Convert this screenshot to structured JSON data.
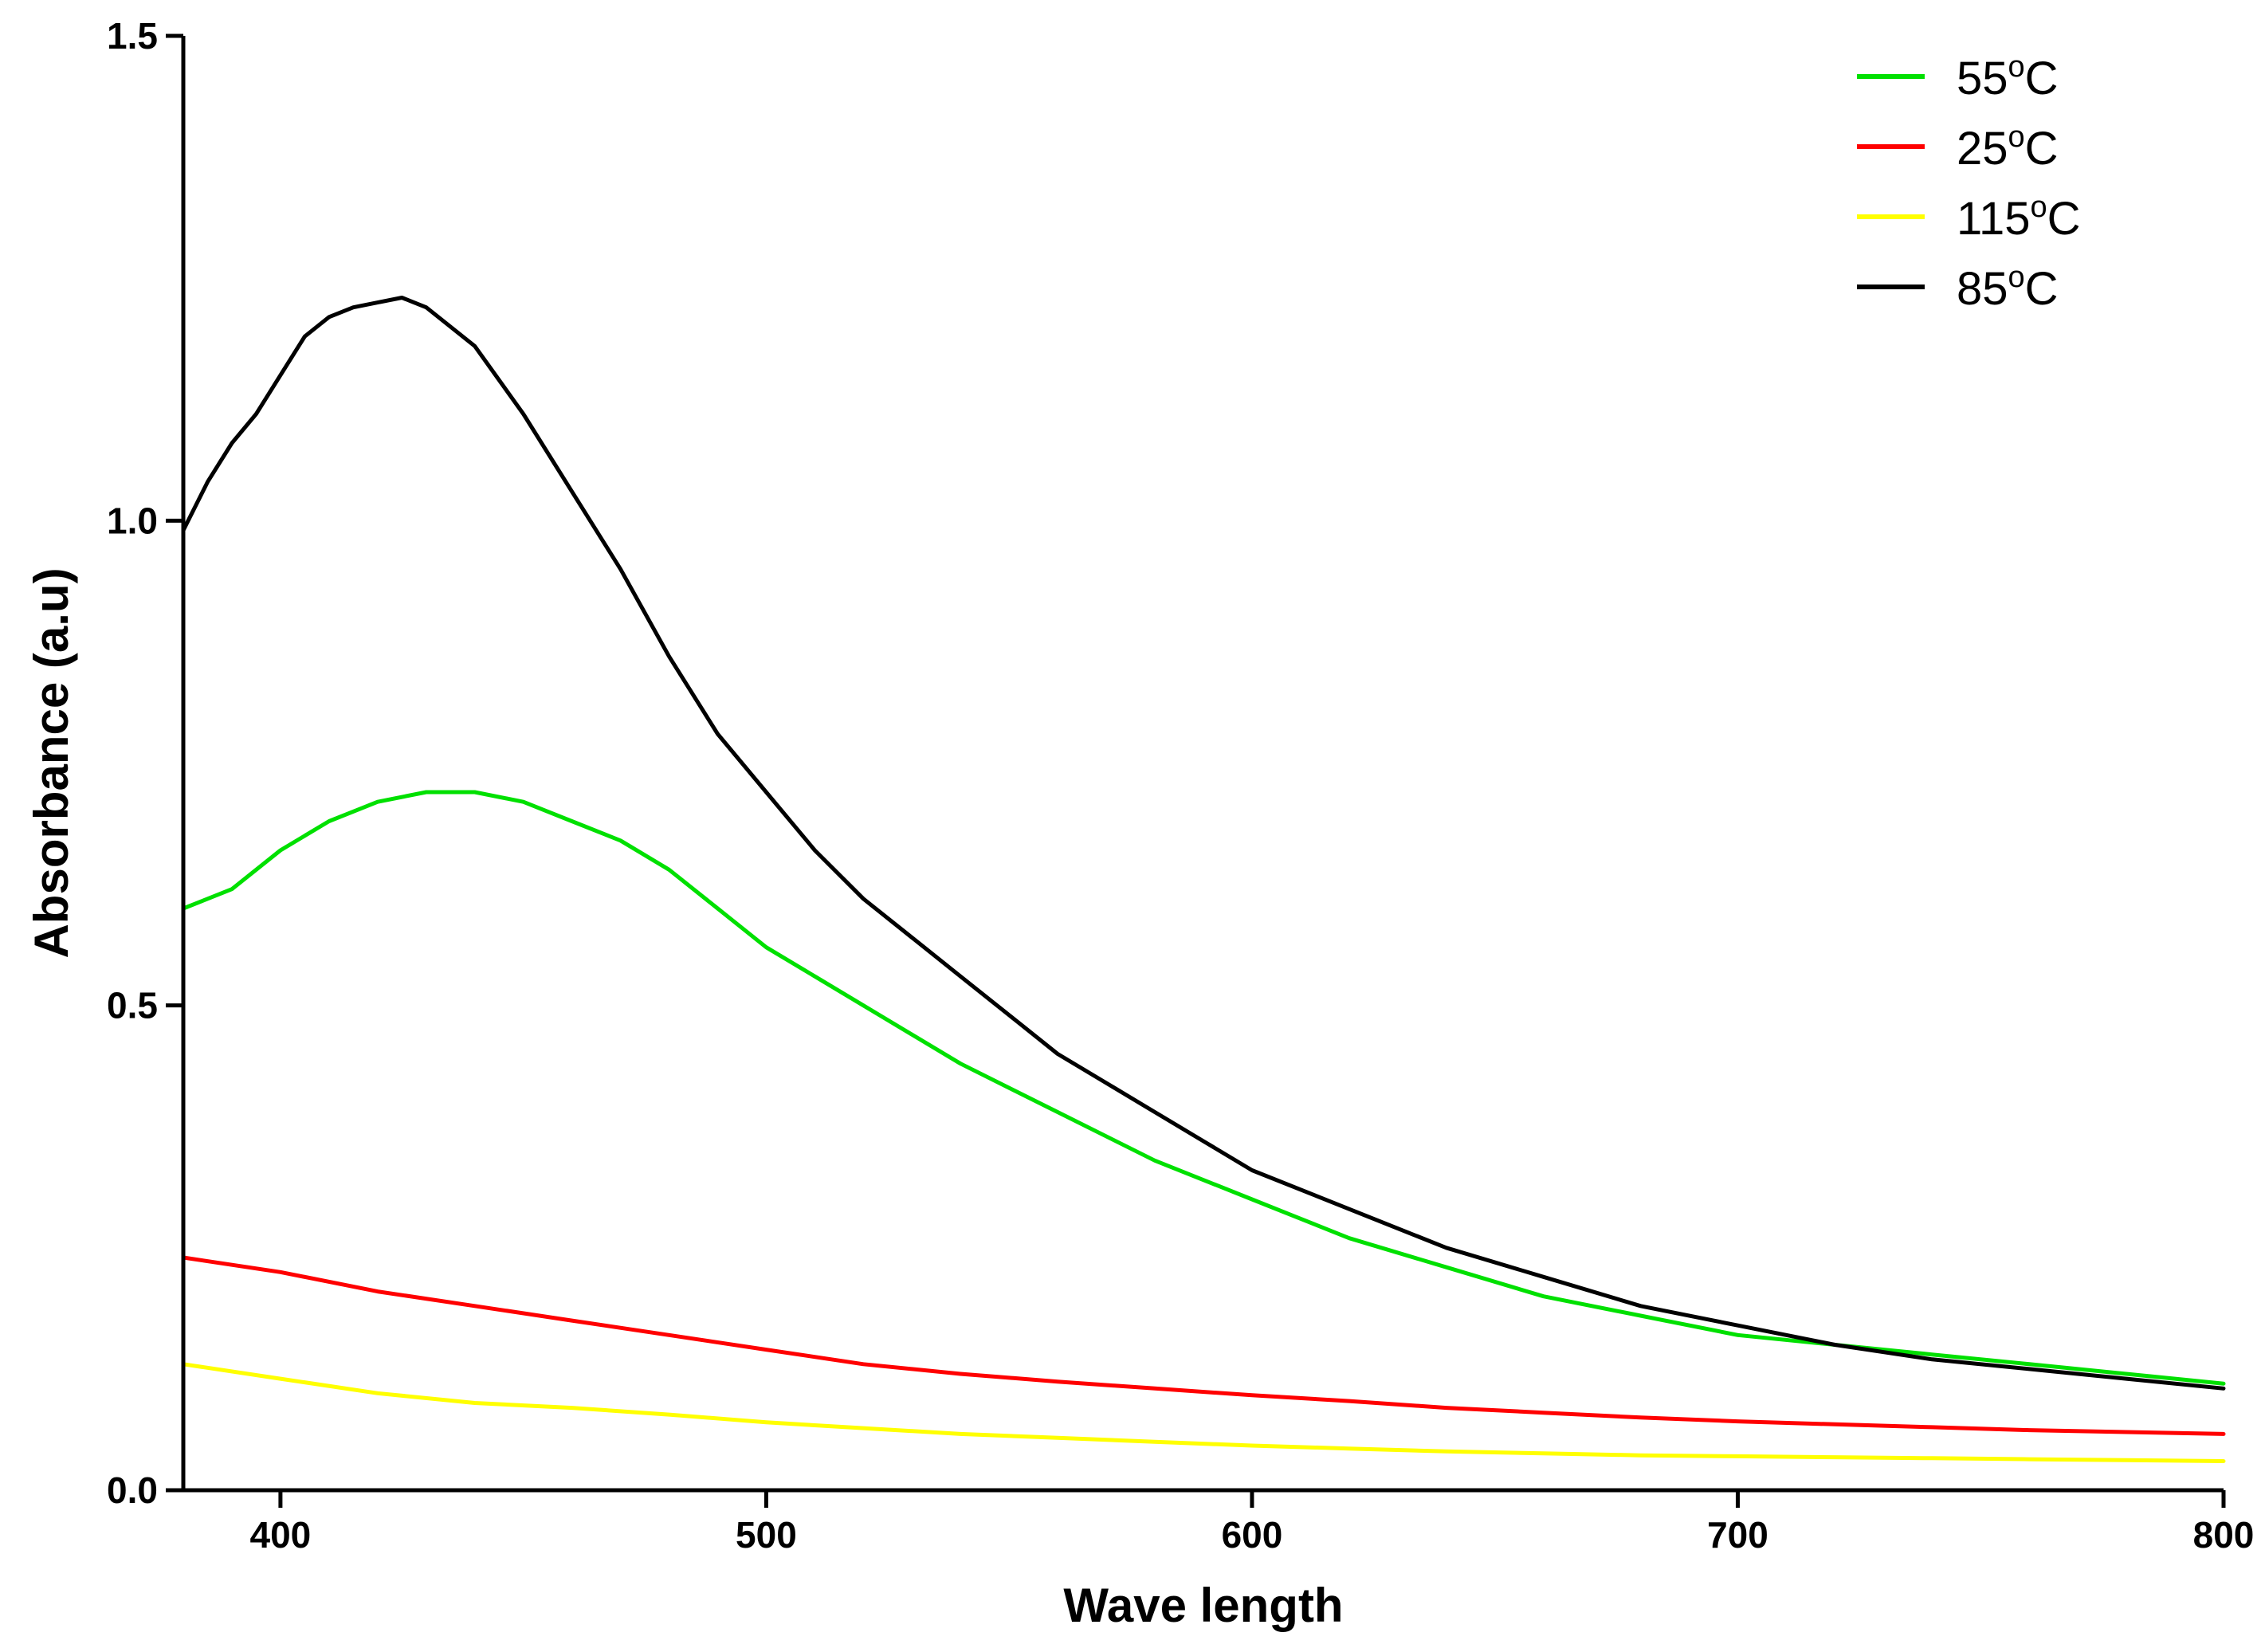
{
  "chart_data": {
    "type": "line",
    "title": "",
    "xlabel": "Wave length",
    "ylabel": "Absorbance (a.u)",
    "xlim": [
      380,
      800
    ],
    "ylim": [
      0,
      1.5
    ],
    "xticks": [
      400,
      500,
      600,
      700,
      800
    ],
    "yticks": [
      0.0,
      0.5,
      1.0,
      1.5
    ],
    "xtick_labels": [
      "400",
      "500",
      "600",
      "700",
      "800"
    ],
    "ytick_labels": [
      "0.0",
      "0.5",
      "1.0",
      "1.5"
    ],
    "grid": false,
    "legend_position": "top-right",
    "series": [
      {
        "name": "55°C",
        "label_main": "55",
        "label_sup": "o",
        "label_unit": "C",
        "color": "#00e000",
        "x": [
          380,
          390,
          400,
          410,
          420,
          430,
          440,
          450,
          460,
          470,
          480,
          490,
          500,
          510,
          520,
          540,
          560,
          580,
          600,
          620,
          640,
          660,
          680,
          700,
          720,
          740,
          760,
          780,
          800
        ],
        "y": [
          0.6,
          0.62,
          0.66,
          0.69,
          0.71,
          0.72,
          0.72,
          0.71,
          0.69,
          0.67,
          0.64,
          0.6,
          0.56,
          0.53,
          0.5,
          0.44,
          0.39,
          0.34,
          0.3,
          0.26,
          0.23,
          0.2,
          0.18,
          0.16,
          0.15,
          0.14,
          0.13,
          0.12,
          0.11
        ]
      },
      {
        "name": "25°C",
        "label_main": "25",
        "label_sup": "o",
        "label_unit": "C",
        "color": "#ff0000",
        "x": [
          380,
          400,
          420,
          440,
          460,
          480,
          500,
          520,
          540,
          560,
          580,
          600,
          620,
          640,
          660,
          680,
          700,
          720,
          740,
          760,
          780,
          800
        ],
        "y": [
          0.24,
          0.225,
          0.205,
          0.19,
          0.175,
          0.16,
          0.145,
          0.13,
          0.12,
          0.112,
          0.105,
          0.098,
          0.092,
          0.085,
          0.08,
          0.075,
          0.071,
          0.068,
          0.065,
          0.062,
          0.06,
          0.058
        ]
      },
      {
        "name": "115°C",
        "label_main": "115",
        "label_sup": "o",
        "label_unit": "C",
        "color": "#ffff00",
        "x": [
          380,
          400,
          420,
          440,
          460,
          480,
          500,
          520,
          540,
          560,
          580,
          600,
          620,
          640,
          660,
          680,
          700,
          720,
          740,
          760,
          780,
          800
        ],
        "y": [
          0.13,
          0.115,
          0.1,
          0.09,
          0.085,
          0.078,
          0.07,
          0.064,
          0.058,
          0.054,
          0.05,
          0.046,
          0.043,
          0.04,
          0.038,
          0.036,
          0.035,
          0.034,
          0.033,
          0.032,
          0.031,
          0.03
        ]
      },
      {
        "name": "85°C",
        "label_main": "85",
        "label_sup": "o",
        "label_unit": "C",
        "color": "#000000",
        "x": [
          380,
          385,
          390,
          395,
          400,
          405,
          410,
          415,
          420,
          425,
          430,
          440,
          450,
          460,
          470,
          480,
          490,
          500,
          510,
          520,
          530,
          540,
          550,
          560,
          570,
          580,
          590,
          600,
          620,
          640,
          660,
          680,
          700,
          720,
          740,
          760,
          780,
          800
        ],
        "y": [
          0.99,
          1.04,
          1.08,
          1.11,
          1.15,
          1.19,
          1.21,
          1.22,
          1.225,
          1.23,
          1.22,
          1.18,
          1.11,
          1.03,
          0.95,
          0.86,
          0.78,
          0.72,
          0.66,
          0.61,
          0.57,
          0.53,
          0.49,
          0.45,
          0.42,
          0.39,
          0.36,
          0.33,
          0.29,
          0.25,
          0.22,
          0.19,
          0.17,
          0.15,
          0.135,
          0.125,
          0.115,
          0.105
        ]
      }
    ]
  }
}
